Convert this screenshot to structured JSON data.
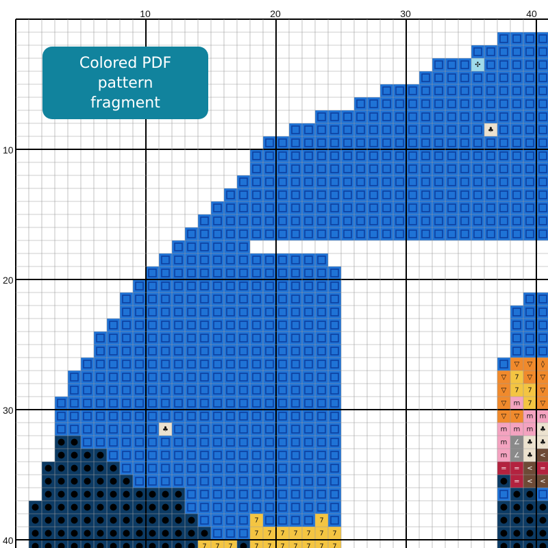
{
  "badge": {
    "line1": "Colored PDF",
    "line2": "pattern",
    "line3": "fragment"
  },
  "axes": {
    "x_ticks": [
      "10",
      "20",
      "30",
      "40"
    ],
    "y_ticks": [
      "10",
      "20",
      "30",
      "40"
    ]
  },
  "colors": {
    "grid_line": "#9a9a9a",
    "major_line": "#000000",
    "blue": "#1f73d6",
    "blue_inner": "#0d3f9e",
    "dark_navy": "#0c3a63",
    "white_fill": "#ffffff",
    "tan": "#ece2cf",
    "light_cyan": "#9fdbeb",
    "orange": "#f08a2c",
    "yellow": "#f4c542",
    "pink": "#f4a3c0",
    "brown": "#6d4a36",
    "crimson": "#b3223f",
    "gray": "#8a8a8a"
  },
  "legend_symbols": {
    "white_fill": "∘",
    "tan": "♣",
    "dark_navy": "●",
    "light_cyan": "✣",
    "orange": "▽",
    "yellow": "7",
    "pink": "m",
    "brown": "<",
    "crimson": "=",
    "gray": "∠",
    "orange_dark": "◊"
  }
}
